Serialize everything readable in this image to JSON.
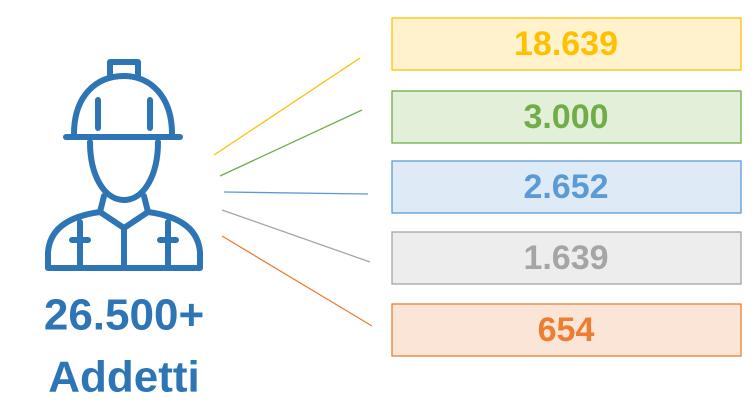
{
  "total": {
    "value": "26.500+",
    "label": "Addetti",
    "color": "#2e75b6"
  },
  "items": [
    {
      "value": "18.639",
      "color": "#ffc000",
      "fill": "#fff2cc"
    },
    {
      "value": "3.000",
      "color": "#70ad47",
      "fill": "#e2efd9"
    },
    {
      "value": "2.652",
      "color": "#5b9bd5",
      "fill": "#deebf7"
    },
    {
      "value": "1.639",
      "color": "#a5a5a5",
      "fill": "#ededed"
    },
    {
      "value": "654",
      "color": "#ed7d31",
      "fill": "#fbe5d6"
    }
  ]
}
